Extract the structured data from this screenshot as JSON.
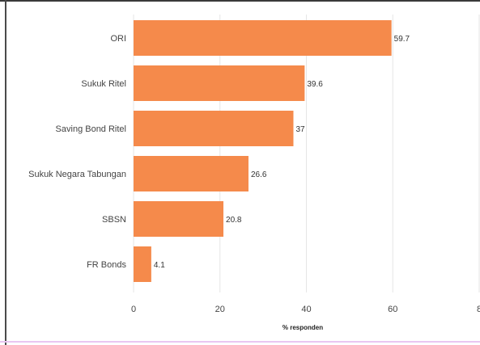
{
  "chart_data": {
    "type": "bar",
    "orientation": "horizontal",
    "categories": [
      "ORI",
      "Sukuk Ritel",
      "Saving Bond Ritel",
      "Sukuk Negara Tabungan",
      "SBSN",
      "FR Bonds"
    ],
    "values": [
      59.7,
      39.6,
      37,
      26.6,
      20.8,
      4.1
    ],
    "value_labels": [
      "59.7",
      "39.6",
      "37",
      "26.6",
      "20.8",
      "4.1"
    ],
    "xlabel": "% responden",
    "ylabel": "",
    "xlim": [
      0,
      80
    ],
    "x_ticks": [
      "0",
      "20",
      "40",
      "60",
      "8"
    ],
    "grid": "vertical",
    "bar_color": "#f58a4b",
    "grid_color": "#e6e6e6"
  }
}
